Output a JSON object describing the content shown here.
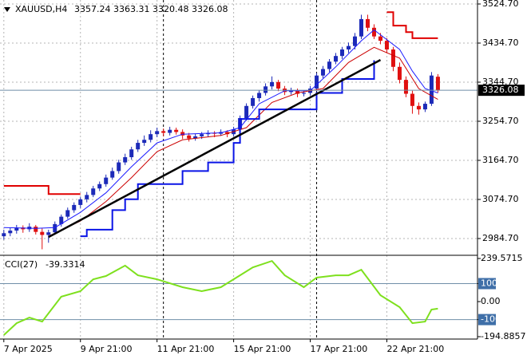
{
  "chart_data": [
    {
      "type": "candlestick",
      "symbol": "XAUUSD,H4",
      "open": [
        2990,
        2997,
        3003,
        3010,
        3006,
        3012,
        3000,
        2993,
        2999,
        3018,
        3035,
        3050,
        3062,
        3075,
        3085,
        3100,
        3110,
        3125,
        3140,
        3160,
        3172,
        3190,
        3205,
        3212,
        3225,
        3232,
        3228,
        3235,
        3230,
        3222,
        3215,
        3220,
        3225,
        3228,
        3226,
        3230,
        3225,
        3236,
        3262,
        3290,
        3308,
        3320,
        3335,
        3345,
        3330,
        3322,
        3325,
        3318,
        3320,
        3330,
        3360,
        3375,
        3392,
        3405,
        3420,
        3428,
        3450,
        3490,
        3470,
        3450,
        3440,
        3420,
        3380,
        3350,
        3318,
        3290,
        3282,
        3295,
        3357.24
      ],
      "high": [
        3005,
        3010,
        3016,
        3015,
        3020,
        3016,
        3008,
        3005,
        3024,
        3040,
        3056,
        3068,
        3080,
        3092,
        3106,
        3116,
        3132,
        3148,
        3166,
        3180,
        3196,
        3212,
        3222,
        3234,
        3240,
        3238,
        3242,
        3240,
        3236,
        3228,
        3226,
        3230,
        3234,
        3232,
        3236,
        3234,
        3242,
        3268,
        3296,
        3314,
        3326,
        3342,
        3358,
        3350,
        3336,
        3332,
        3330,
        3326,
        3336,
        3366,
        3382,
        3398,
        3412,
        3426,
        3436,
        3458,
        3500,
        3500,
        3478,
        3458,
        3446,
        3426,
        3390,
        3358,
        3325,
        3298,
        3300,
        3368,
        3363.31
      ],
      "low": [
        2982,
        2990,
        2996,
        2998,
        3000,
        2994,
        2960,
        2975,
        2994,
        3012,
        3030,
        3044,
        3055,
        3068,
        3080,
        3094,
        3104,
        3120,
        3134,
        3154,
        3166,
        3184,
        3198,
        3206,
        3218,
        3220,
        3222,
        3224,
        3214,
        3208,
        3210,
        3214,
        3219,
        3218,
        3221,
        3218,
        3220,
        3230,
        3256,
        3284,
        3300,
        3314,
        3328,
        3324,
        3315,
        3316,
        3310,
        3312,
        3314,
        3325,
        3354,
        3368,
        3386,
        3398,
        3412,
        3420,
        3444,
        3462,
        3444,
        3432,
        3412,
        3370,
        3342,
        3310,
        3272,
        3270,
        3276,
        3290,
        3320.48
      ],
      "close": [
        2997,
        3003,
        3010,
        3006,
        3012,
        3000,
        2993,
        2999,
        3018,
        3035,
        3050,
        3062,
        3075,
        3085,
        3100,
        3110,
        3125,
        3140,
        3160,
        3172,
        3190,
        3205,
        3212,
        3225,
        3232,
        3228,
        3235,
        3230,
        3222,
        3215,
        3220,
        3225,
        3228,
        3226,
        3230,
        3225,
        3236,
        3262,
        3290,
        3308,
        3320,
        3335,
        3345,
        3330,
        3322,
        3325,
        3318,
        3320,
        3330,
        3360,
        3375,
        3392,
        3405,
        3420,
        3428,
        3450,
        3490,
        3470,
        3450,
        3440,
        3420,
        3380,
        3350,
        3318,
        3290,
        3282,
        3295,
        3360,
        3326.08
      ],
      "up_color": "#1c2ab8",
      "down_color": "#e01010",
      "lines": [
        {
          "color": "#1c1cff",
          "width": 1,
          "x": [
            0,
            5,
            8,
            12,
            16,
            20,
            24,
            28,
            34,
            37,
            40,
            44,
            48,
            52,
            56,
            58,
            62,
            64,
            66,
            68
          ],
          "values": [
            3010,
            3008,
            3010,
            3045,
            3090,
            3150,
            3205,
            3225,
            3228,
            3240,
            3295,
            3325,
            3325,
            3380,
            3440,
            3465,
            3420,
            3370,
            3330,
            3320
          ]
        },
        {
          "color": "#cc0000",
          "width": 1,
          "x": [
            7,
            12,
            16,
            20,
            24,
            28,
            34,
            38,
            42,
            46,
            50,
            54,
            58,
            62,
            65,
            68
          ],
          "values": [
            2990,
            3025,
            3070,
            3125,
            3185,
            3212,
            3222,
            3240,
            3298,
            3320,
            3330,
            3390,
            3425,
            3400,
            3330,
            3305
          ]
        },
        {
          "color": "#0a14e6",
          "width": 2,
          "x": [
            12,
            13,
            13,
            17,
            17,
            19,
            19,
            21,
            21,
            28,
            28,
            32,
            32,
            36,
            36,
            37,
            37,
            40,
            40,
            49,
            49,
            53,
            53,
            58,
            58
          ],
          "values": [
            2990,
            2990,
            3005,
            3005,
            3050,
            3050,
            3075,
            3075,
            3110,
            3110,
            3140,
            3140,
            3160,
            3160,
            3205,
            3205,
            3260,
            3260,
            3282,
            3282,
            3320,
            3320,
            3352,
            3352,
            3395
          ]
        },
        {
          "color": "#e00000",
          "width": 2,
          "x": [
            0,
            7,
            7,
            12,
            null,
            60,
            61,
            61,
            63,
            63,
            64,
            64,
            68
          ],
          "values": [
            3106,
            3106,
            3087,
            3087,
            null,
            3506,
            3506,
            3475,
            3475,
            3460,
            3460,
            3446,
            3446
          ]
        },
        {
          "color": "#000000",
          "width": 2.5,
          "x": [
            7,
            59
          ],
          "values": [
            2988,
            3396
          ]
        }
      ],
      "separators": [
        25,
        49
      ],
      "ylim": [
        2949.8,
        3533.9
      ],
      "yticks": [
        {
          "value": 3524.7,
          "label": "3524.70"
        },
        {
          "value": 3434.7,
          "label": "3434.70"
        },
        {
          "value": 3344.7,
          "label": "3344.70"
        },
        {
          "value": 3254.7,
          "label": "3254.70"
        },
        {
          "value": 3164.7,
          "label": "3164.70"
        },
        {
          "value": 3074.7,
          "label": "3074.70"
        },
        {
          "value": 2984.7,
          "label": "2984.70"
        }
      ],
      "xlim": [
        -0.6,
        74.2
      ],
      "xticks": [
        {
          "value": 0,
          "label": "7 Apr 2025"
        },
        {
          "value": 12,
          "label": "9 Apr 21:00"
        },
        {
          "value": 24,
          "label": "11 Apr 21:00"
        },
        {
          "value": 36,
          "label": "15 Apr 21:00"
        },
        {
          "value": 48,
          "label": "17 Apr 21:00"
        },
        {
          "value": 60,
          "label": "22 Apr 21:00"
        }
      ],
      "grid": true
    },
    {
      "type": "line",
      "title": "CCI(27)",
      "color": "#7ee01e",
      "x": [
        0,
        2,
        4,
        6,
        9,
        12,
        14,
        16,
        19,
        21,
        24,
        28,
        31,
        34,
        37,
        39,
        42,
        44,
        47,
        49,
        52,
        54,
        56,
        59,
        62,
        64,
        66,
        67,
        68
      ],
      "values": [
        -186,
        -120,
        -89,
        -111,
        27,
        58,
        124,
        142,
        200,
        146,
        124,
        80,
        58,
        80,
        146,
        190,
        226,
        146,
        80,
        133,
        146,
        146,
        177,
        35,
        -31,
        -120,
        -111,
        -44,
        -39.3314
      ],
      "ylim": [
        -194.8857,
        239.5715
      ],
      "yticks": [
        239.5715,
        100,
        {
          "value": 0,
          "label": "0.00"
        },
        -100,
        -194.8857
      ],
      "levels": [
        100,
        -100
      ]
    }
  ]
}
